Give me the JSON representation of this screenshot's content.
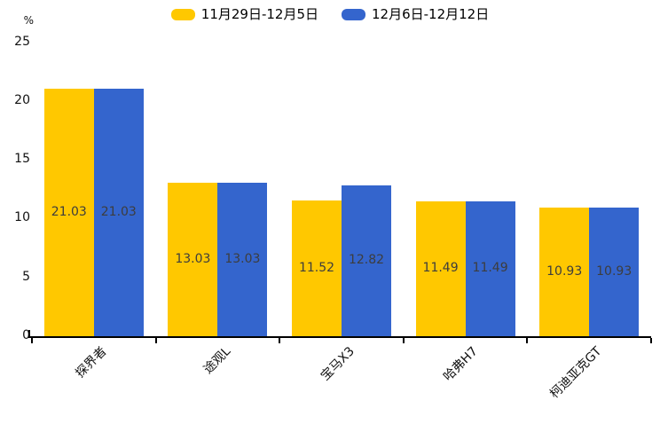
{
  "chart_data": {
    "type": "bar",
    "title": "",
    "ylabel": "%",
    "ylim": [
      0,
      25
    ],
    "yticks": [
      0,
      5,
      10,
      15,
      20,
      25
    ],
    "categories": [
      "探界者",
      "途观L",
      "宝马X3",
      "哈弗H7",
      "柯迪亚克GT"
    ],
    "series": [
      {
        "name": "11月29日-12月5日",
        "color": "#FFC800",
        "values": [
          21.03,
          13.03,
          11.52,
          11.49,
          10.93
        ]
      },
      {
        "name": "12月6日-12月12日",
        "color": "#3465CD",
        "values": [
          21.03,
          13.03,
          12.82,
          11.49,
          10.93
        ]
      }
    ],
    "legend_position": "top",
    "grid": false,
    "bar_label_position": "inside-center",
    "bar_label_color": "#3d3d3d",
    "xtick_rotation": -45,
    "axis_color": "#000000"
  }
}
